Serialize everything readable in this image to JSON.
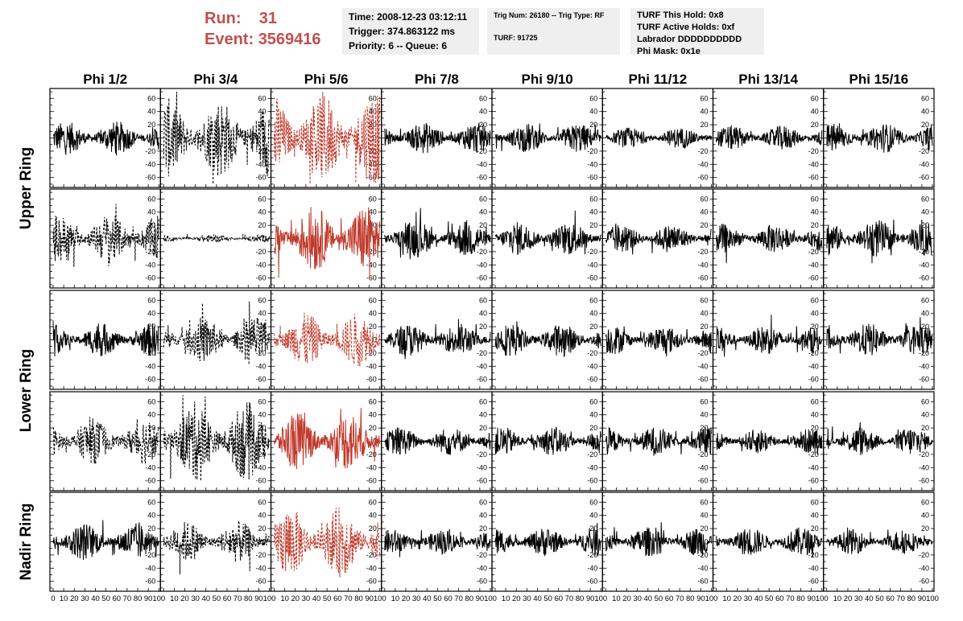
{
  "header": {
    "run_label": "Run:",
    "run_value": "31",
    "event_label": "Event:",
    "event_value": "3569416",
    "time": "Time: 2008-12-23 03:12:11",
    "trigger": "Trigger: 374.863122 ms",
    "priority": "Priority: 6 -- Queue: 6",
    "trig_num": "Trig Num: 26180 -- Trig Type: RF",
    "turf": "TURF: 91725",
    "turf_hold": "TURF This Hold: 0x8",
    "turf_active": "TURF Active Holds: 0xf",
    "labrador": "Labrador DDDDDDDDDD",
    "phi_mask": "Phi Mask: 0x1e"
  },
  "chart_data": {
    "type": "line",
    "columns": [
      "Phi 1/2",
      "Phi 3/4",
      "Phi 5/6",
      "Phi 7/8",
      "Phi 9/10",
      "Phi 11/12",
      "Phi 13/14",
      "Phi 15/16"
    ],
    "ring_labels": [
      {
        "text": "Upper Ring",
        "rows": [
          0,
          1
        ]
      },
      {
        "text": "Lower Ring",
        "rows": [
          2,
          3
        ]
      },
      {
        "text": "Nadir Ring",
        "rows": [
          4
        ]
      }
    ],
    "xlim": [
      0,
      100
    ],
    "x_ticks": [
      0,
      10,
      20,
      30,
      40,
      50,
      60,
      70,
      80,
      90,
      100
    ],
    "x_tick_labels": [
      "0",
      "10",
      "20",
      "30",
      "40",
      "50",
      "60",
      "70",
      "80",
      "90",
      "100"
    ],
    "ylim": [
      -75,
      75
    ],
    "y_ticks": [
      -60,
      -40,
      -20,
      0,
      20,
      40,
      60
    ],
    "y_tick_labels": [
      "-60",
      "-40",
      "-20",
      "0",
      "20",
      "40",
      "60"
    ],
    "colors": {
      "normal": "#000000",
      "triggered": "#c0392b"
    },
    "panels": [
      [
        {
          "style": "solid",
          "color": "normal",
          "amp": 16
        },
        {
          "style": "dashed",
          "color": "normal",
          "amp": 38
        },
        {
          "style": "dashed",
          "color": "triggered",
          "amp": 45
        },
        {
          "style": "solid",
          "color": "normal",
          "amp": 15
        },
        {
          "style": "solid",
          "color": "normal",
          "amp": 14
        },
        {
          "style": "solid",
          "color": "normal",
          "amp": 10
        },
        {
          "style": "solid",
          "color": "normal",
          "amp": 12
        },
        {
          "style": "solid",
          "color": "normal",
          "amp": 14
        }
      ],
      [
        {
          "style": "dashed",
          "color": "normal",
          "amp": 24
        },
        {
          "style": "dashed",
          "color": "normal",
          "amp": 4
        },
        {
          "style": "solid",
          "color": "triggered",
          "amp": 32
        },
        {
          "style": "solid",
          "color": "normal",
          "amp": 18
        },
        {
          "style": "solid",
          "color": "normal",
          "amp": 16
        },
        {
          "style": "solid",
          "color": "normal",
          "amp": 14
        },
        {
          "style": "solid",
          "color": "normal",
          "amp": 14
        },
        {
          "style": "solid",
          "color": "normal",
          "amp": 18
        }
      ],
      [
        {
          "style": "solid",
          "color": "normal",
          "amp": 16
        },
        {
          "style": "dashed",
          "color": "normal",
          "amp": 22
        },
        {
          "style": "dashed",
          "color": "triggered",
          "amp": 26
        },
        {
          "style": "solid",
          "color": "normal",
          "amp": 16
        },
        {
          "style": "solid",
          "color": "normal",
          "amp": 16
        },
        {
          "style": "solid",
          "color": "normal",
          "amp": 14
        },
        {
          "style": "solid",
          "color": "normal",
          "amp": 14
        },
        {
          "style": "solid",
          "color": "normal",
          "amp": 16
        }
      ],
      [
        {
          "style": "dashed",
          "color": "normal",
          "amp": 22
        },
        {
          "style": "dashed",
          "color": "normal",
          "amp": 38
        },
        {
          "style": "solid",
          "color": "triggered",
          "amp": 28
        },
        {
          "style": "solid",
          "color": "normal",
          "amp": 14
        },
        {
          "style": "solid",
          "color": "normal",
          "amp": 14
        },
        {
          "style": "solid",
          "color": "normal",
          "amp": 14
        },
        {
          "style": "solid",
          "color": "normal",
          "amp": 12
        },
        {
          "style": "solid",
          "color": "normal",
          "amp": 14
        }
      ],
      [
        {
          "style": "solid",
          "color": "normal",
          "amp": 18
        },
        {
          "style": "dashed",
          "color": "normal",
          "amp": 20
        },
        {
          "style": "dashed",
          "color": "triggered",
          "amp": 34
        },
        {
          "style": "solid",
          "color": "normal",
          "amp": 12
        },
        {
          "style": "solid",
          "color": "normal",
          "amp": 14
        },
        {
          "style": "solid",
          "color": "normal",
          "amp": 14
        },
        {
          "style": "solid",
          "color": "normal",
          "amp": 14
        },
        {
          "style": "solid",
          "color": "normal",
          "amp": 12
        }
      ]
    ]
  }
}
